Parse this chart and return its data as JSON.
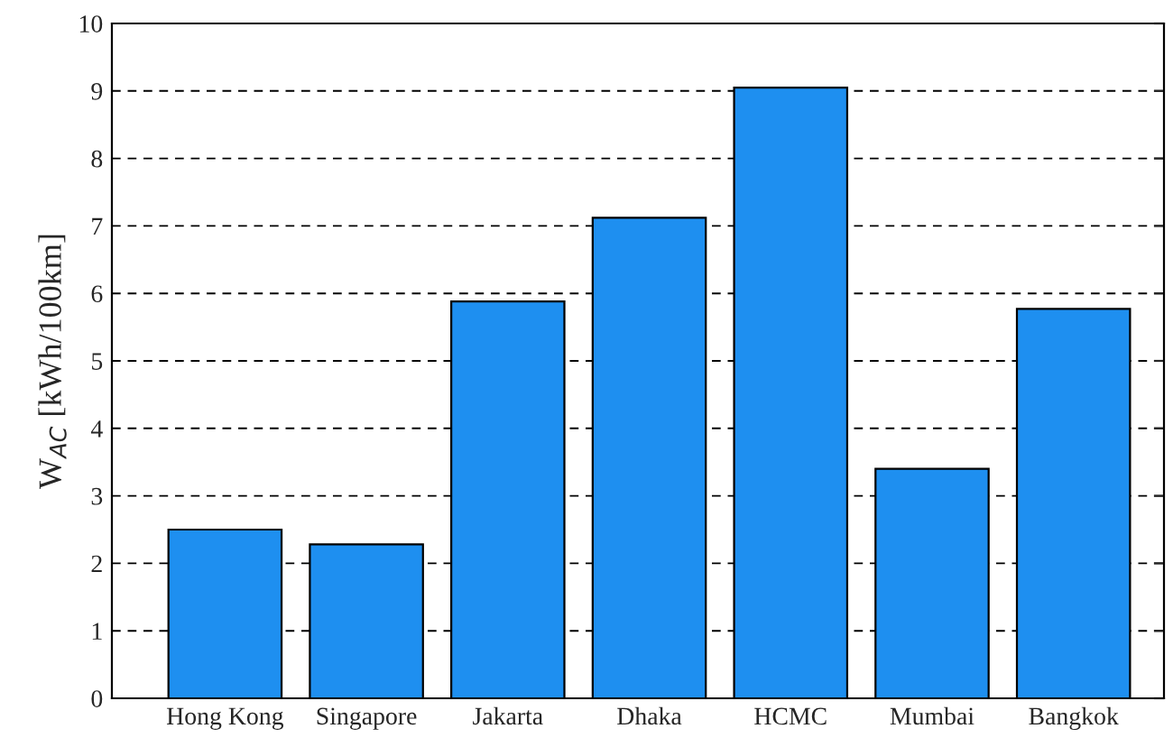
{
  "chart_data": {
    "type": "bar",
    "ylabel": "W$_{AC}$ [kWh/100km]",
    "categories": [
      "Hong Kong",
      "Singapore",
      "Jakarta",
      "Dhaka",
      "HCMC",
      "Mumbai",
      "Bangkok"
    ],
    "values": [
      2.5,
      2.28,
      5.88,
      7.12,
      9.05,
      3.4,
      5.77
    ],
    "color": "#1e8ff0",
    "ylim": [
      0,
      10
    ],
    "yticks": [
      0,
      1,
      2,
      3,
      4,
      5,
      6,
      7,
      8,
      9,
      10
    ],
    "grid": "y"
  }
}
